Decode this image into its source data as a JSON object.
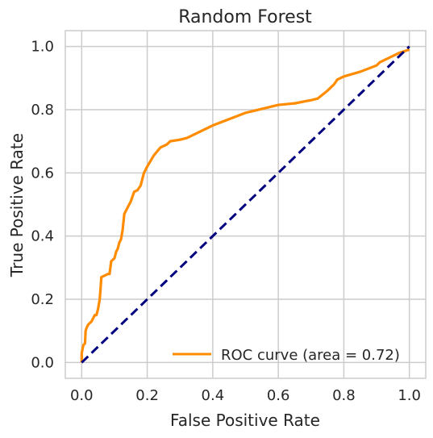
{
  "chart_data": {
    "type": "line",
    "title": "Random Forest",
    "xlabel": "False Positive Rate",
    "ylabel": "True Positive Rate",
    "xlim": [
      -0.05,
      1.05
    ],
    "ylim": [
      -0.05,
      1.05
    ],
    "xticks": [
      "0.0",
      "0.2",
      "0.4",
      "0.6",
      "0.8",
      "1.0"
    ],
    "yticks": [
      "0.0",
      "0.2",
      "0.4",
      "0.6",
      "0.8",
      "1.0"
    ],
    "grid": true,
    "legend_position": "lower right",
    "legend": [
      "ROC curve (area = 0.72)"
    ],
    "series": [
      {
        "name": "ROC curve (area = 0.72)",
        "color": "#ff8c00",
        "style": "solid",
        "x": [
          0.0,
          0.0,
          0.005,
          0.01,
          0.012,
          0.015,
          0.02,
          0.03,
          0.04,
          0.045,
          0.05,
          0.055,
          0.058,
          0.06,
          0.07,
          0.08,
          0.085,
          0.09,
          0.1,
          0.105,
          0.11,
          0.115,
          0.12,
          0.125,
          0.128,
          0.13,
          0.14,
          0.15,
          0.16,
          0.17,
          0.18,
          0.185,
          0.19,
          0.2,
          0.22,
          0.24,
          0.26,
          0.27,
          0.3,
          0.32,
          0.33,
          0.4,
          0.5,
          0.52,
          0.6,
          0.65,
          0.7,
          0.72,
          0.75,
          0.77,
          0.78,
          0.8,
          0.85,
          0.9,
          0.91,
          0.95,
          0.97,
          1.0
        ],
        "y": [
          0.0,
          0.03,
          0.055,
          0.06,
          0.1,
          0.11,
          0.12,
          0.13,
          0.15,
          0.15,
          0.17,
          0.2,
          0.24,
          0.27,
          0.275,
          0.28,
          0.28,
          0.32,
          0.33,
          0.35,
          0.36,
          0.38,
          0.39,
          0.42,
          0.45,
          0.47,
          0.49,
          0.51,
          0.54,
          0.545,
          0.56,
          0.58,
          0.6,
          0.62,
          0.655,
          0.68,
          0.69,
          0.7,
          0.705,
          0.71,
          0.715,
          0.75,
          0.79,
          0.795,
          0.815,
          0.82,
          0.83,
          0.835,
          0.86,
          0.88,
          0.895,
          0.905,
          0.92,
          0.94,
          0.95,
          0.97,
          0.98,
          0.99
        ]
      },
      {
        "name": "",
        "color": "#00007f",
        "style": "dashed",
        "x": [
          0.0,
          1.0
        ],
        "y": [
          0.0,
          1.0
        ]
      }
    ]
  }
}
